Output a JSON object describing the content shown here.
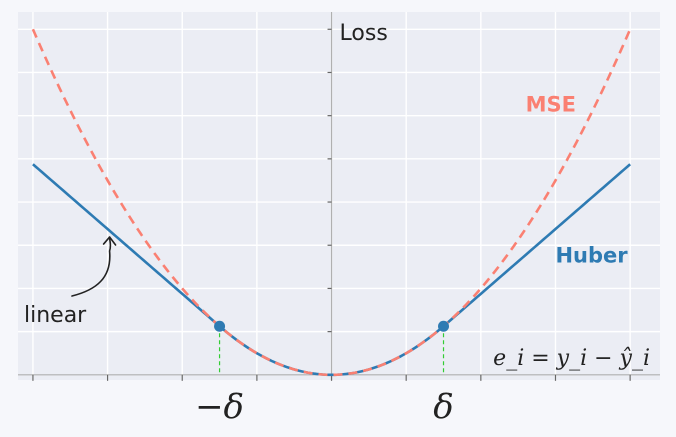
{
  "chart_data": {
    "type": "line",
    "xlabel": "",
    "ylabel": "Loss",
    "delta": 1.5,
    "xlim": [
      -4.2,
      4.4
    ],
    "ylim": [
      -0.12,
      8.4
    ],
    "grid": true,
    "x_ticks": [
      -4,
      -3,
      -2,
      -1,
      0,
      1,
      2,
      3,
      4
    ],
    "x_tick_labels": [
      {
        "x": -1.5,
        "label": "−δ"
      },
      {
        "x": 1.5,
        "label": "δ"
      }
    ],
    "y_ticks": [
      1,
      2,
      3,
      4,
      5,
      6,
      7,
      8
    ],
    "series": [
      {
        "name": "MSE",
        "style": "dashed",
        "color": "#fa8072",
        "x": [
          -4,
          -3.5,
          -3,
          -2.5,
          -2,
          -1.5,
          -1,
          -0.5,
          0,
          0.5,
          1,
          1.5,
          2,
          2.5,
          3,
          3.5,
          4
        ],
        "y": [
          8,
          6.125,
          4.5,
          3.125,
          2,
          1.125,
          0.5,
          0.125,
          0,
          0.125,
          0.5,
          1.125,
          2,
          3.125,
          4.5,
          6.125,
          8
        ]
      },
      {
        "name": "Huber",
        "style": "solid",
        "color": "#2e7bb3",
        "x": [
          -4,
          -3.5,
          -3,
          -2.5,
          -2,
          -1.5,
          -1,
          -0.5,
          0,
          0.5,
          1,
          1.5,
          2,
          2.5,
          3,
          3.5,
          4
        ],
        "y": [
          4.875,
          4.125,
          3.375,
          2.625,
          1.875,
          1.125,
          0.5,
          0.125,
          0,
          0.125,
          0.5,
          1.125,
          1.875,
          2.625,
          3.375,
          4.125,
          4.875
        ]
      }
    ],
    "markers": [
      {
        "x": -1.5,
        "y": 1.125
      },
      {
        "x": 1.5,
        "y": 1.125
      }
    ],
    "annotations": [
      {
        "text": "linear",
        "points_to": {
          "x": -3.0,
          "y": 3.375
        }
      },
      {
        "text": "e_i = y_i − ŷ_i",
        "location": "bottom-right"
      }
    ],
    "legend_labels": {
      "mse": "MSE",
      "huber": "Huber"
    },
    "colors": {
      "mse": "#fa8072",
      "huber": "#2e7bb3",
      "guide": "#33cc33",
      "grid": "#d9dce6",
      "plot_bg": "#ebedf4",
      "axis": "#b0b0b0"
    }
  }
}
